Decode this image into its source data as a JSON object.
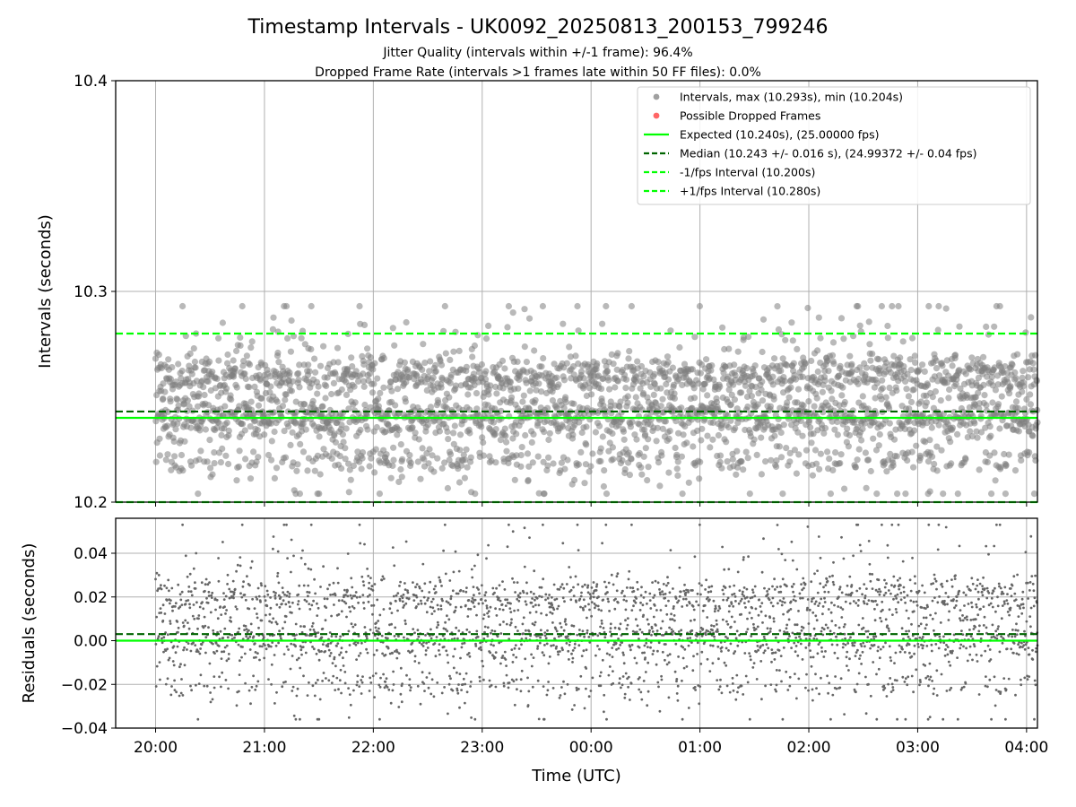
{
  "figure": {
    "title": "Timestamp Intervals - UK0092_20250813_200153_799246",
    "subtitle_1": "Jitter Quality (intervals within +/-1 frame): 96.4%",
    "subtitle_2": "Dropped Frame Rate (intervals >1 frames late within 50 FF files): 0.0%"
  },
  "colors": {
    "points": "#808080",
    "dropped": "#ff0000",
    "expected": "#00ff00",
    "median": "#006400",
    "fps_interval": "#00ff00",
    "grid": "#b0b0b0"
  },
  "chart_data": [
    {
      "type": "scatter",
      "panel": "top",
      "xlabel": "",
      "ylabel": "Intervals (seconds)",
      "xlim": [
        "19:38",
        "04:06"
      ],
      "ylim": [
        10.2,
        10.4
      ],
      "y_ticks": [
        "10.2",
        "10.3",
        "10.4"
      ],
      "grid": true,
      "legend_placement": "top-right",
      "legend": [
        {
          "label": "Intervals, max (10.293s), min (10.204s)",
          "kind": "marker",
          "color": "#a0a0a0"
        },
        {
          "label": "Possible Dropped Frames",
          "kind": "marker",
          "color": "#ff6666"
        },
        {
          "label": "Expected (10.240s), (25.00000 fps)",
          "kind": "solid",
          "color": "#00ff00"
        },
        {
          "label": "Median (10.243 +/- 0.016 s), (24.99372 +/- 0.04 fps)",
          "kind": "dashed",
          "color": "#006400"
        },
        {
          "label": "-1/fps Interval (10.200s)",
          "kind": "dashed",
          "color": "#00ff00"
        },
        {
          "label": "+1/fps Interval (10.280s)",
          "kind": "dashed",
          "color": "#00ff00"
        }
      ],
      "reference_lines": [
        {
          "name": "Expected",
          "y": 10.24,
          "style": "solid",
          "color": "#00ff00"
        },
        {
          "name": "Median",
          "y": 10.243,
          "style": "dashed",
          "color": "#006400"
        },
        {
          "name": "-1/fps Interval",
          "y": 10.2,
          "style": "dashed",
          "color": "#00ff00"
        },
        {
          "name": "+1/fps Interval",
          "y": 10.28,
          "style": "dashed",
          "color": "#00ff00"
        }
      ],
      "x_start": "20:00",
      "x_end": "04:06",
      "series": [
        {
          "name": "Intervals",
          "summary": {
            "count": 2850,
            "max": 10.293,
            "min": 10.204
          },
          "distribution": [
            {
              "center": 10.24,
              "spread": 0.005,
              "weight": 0.35
            },
            {
              "center": 10.26,
              "spread": 0.005,
              "weight": 0.33
            },
            {
              "center": 10.22,
              "spread": 0.003,
              "weight": 0.12
            },
            {
              "center": 10.25,
              "spread": 0.025,
              "weight": 0.2
            }
          ]
        }
      ]
    },
    {
      "type": "scatter",
      "panel": "bottom",
      "xlabel": "Time (UTC)",
      "ylabel": "Residuals (seconds)",
      "x_ticks": [
        "20:00",
        "21:00",
        "22:00",
        "23:00",
        "00:00",
        "01:00",
        "02:00",
        "03:00",
        "04:00"
      ],
      "ylim": [
        -0.04,
        0.056
      ],
      "y_ticks": [
        "−0.04",
        "−0.02",
        "0.00",
        "0.02",
        "0.04"
      ],
      "grid": true,
      "reference_lines": [
        {
          "name": "Expected",
          "y": 0.0,
          "style": "solid",
          "color": "#00ff00"
        },
        {
          "name": "Median",
          "y": 0.003,
          "style": "dashed",
          "color": "#006400"
        }
      ],
      "series": [
        {
          "name": "Residuals",
          "summary": {
            "count": 2850,
            "max": 0.053,
            "min": -0.036
          },
          "distribution": [
            {
              "center": 0.0,
              "spread": 0.005,
              "weight": 0.35
            },
            {
              "center": 0.02,
              "spread": 0.005,
              "weight": 0.33
            },
            {
              "center": -0.02,
              "spread": 0.003,
              "weight": 0.12
            },
            {
              "center": 0.01,
              "spread": 0.025,
              "weight": 0.2
            }
          ]
        }
      ]
    }
  ]
}
